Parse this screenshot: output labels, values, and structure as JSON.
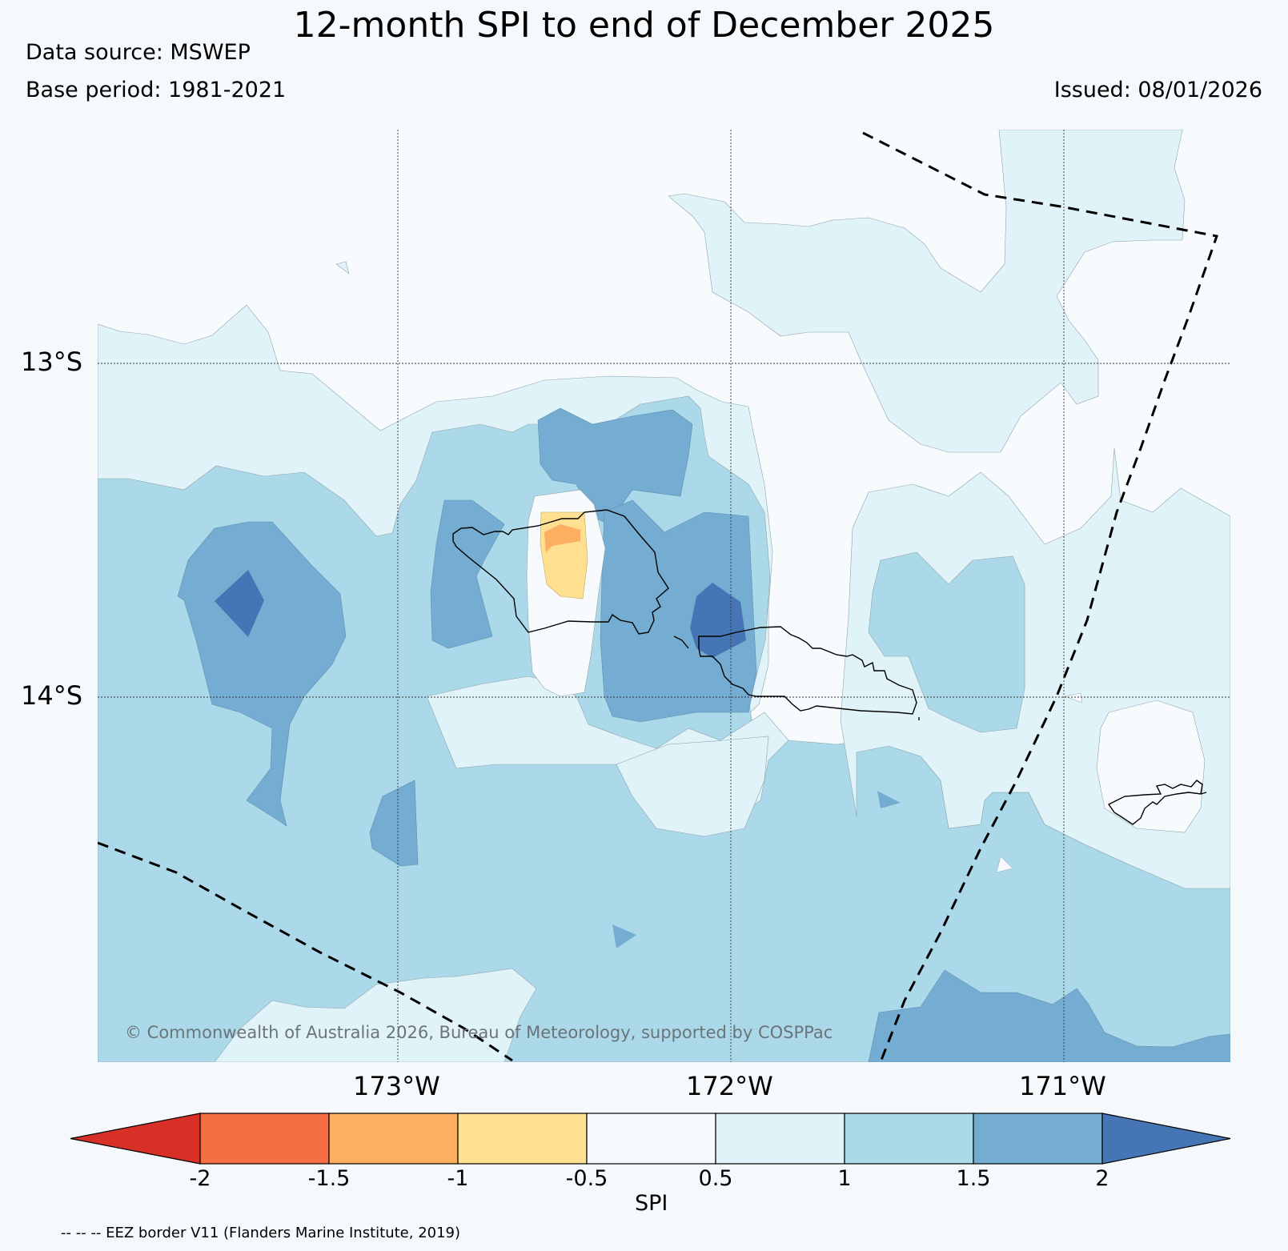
{
  "header": {
    "title": "12-month SPI to end of December 2025",
    "data_source": "Data source: MSWEP",
    "base_period": "Base period: 1981-2021",
    "issued": "Issued: 08/01/2026"
  },
  "map": {
    "lat_labels": [
      "13°S",
      "14°S"
    ],
    "lon_labels": [
      "173°W",
      "172°W",
      "171°W"
    ],
    "copyright": "© Commonwealth of Australia 2026, Bureau of Meteorology, supported by COSPPac"
  },
  "colorbar": {
    "label": "SPI",
    "ticks": [
      "-2",
      "-1.5",
      "-1",
      "-0.5",
      "0.5",
      "1",
      "1.5",
      "2"
    ],
    "colors": {
      "below_min": "#d73027",
      "bins": [
        "#f46d43",
        "#fdae61",
        "#fee090",
        "#f7fbfd",
        "#e0f3f8",
        "#abd9e9",
        "#74add1"
      ],
      "above_max": "#4575b4"
    }
  },
  "footer": {
    "eez_note": "-- -- -- EEZ border V11 (Flanders Marine Institute, 2019)"
  }
}
